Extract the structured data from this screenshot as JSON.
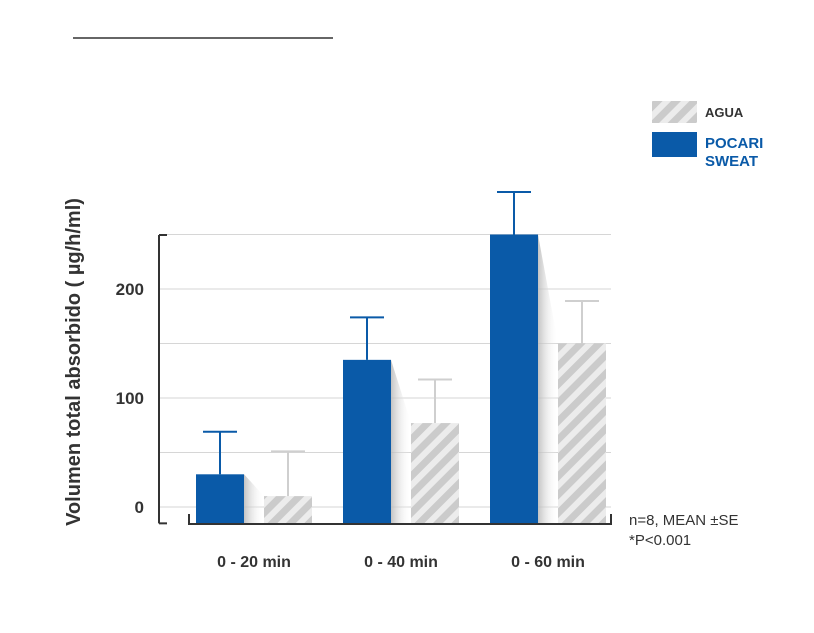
{
  "chart_data": {
    "type": "bar",
    "title": "",
    "xlabel": "",
    "ylabel": "Volumen total absorbido ( µg/h/ml)",
    "categories": [
      "0 - 20 min",
      "0 - 40 min",
      "0 - 60 min"
    ],
    "yticks": [
      0,
      100,
      200
    ],
    "ylim": [
      -15,
      260
    ],
    "grid": true,
    "legend_position": "top-right",
    "series": [
      {
        "name_lines": [
          "POCARI",
          "SWEAT"
        ],
        "name": "POCARI SWEAT",
        "color": "#0a5aa8",
        "pattern": "solid",
        "values": [
          30,
          135,
          250
        ],
        "error": [
          39,
          39,
          39
        ]
      },
      {
        "name_lines": [
          "AGUA"
        ],
        "name": "AGUA",
        "color": "#c9c9c9",
        "pattern": "hatched",
        "values": [
          10,
          77,
          150
        ],
        "error": [
          41,
          40,
          39
        ]
      }
    ],
    "annotations": [
      "n=8, MEAN ±SE",
      "*P<0.001"
    ]
  }
}
